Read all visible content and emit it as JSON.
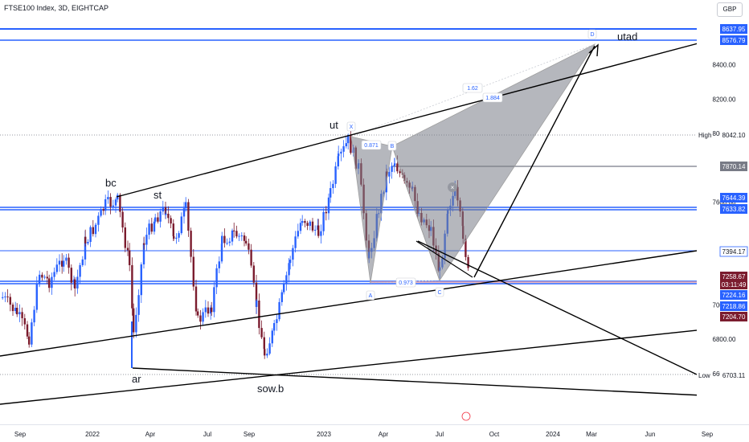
{
  "header": {
    "title": "FTSE100 Index, 3D, EIGHTCAP",
    "currency": "GBP"
  },
  "colors": {
    "up": "#2962ff",
    "down": "#7b1c2e",
    "blue_line": "#2962ff",
    "pattern_fill": "#787b86",
    "trend": "#000000"
  },
  "chart_data": {
    "type": "candlestick",
    "symbol": "FTSE100 Index",
    "timeframe": "3D",
    "y_ticks": [
      6600,
      6800,
      7000,
      7600,
      8000,
      8200,
      8400
    ],
    "x_ticks": [
      "Sep",
      "2022",
      "Apr",
      "Jul",
      "Sep",
      "2023",
      "Apr",
      "Jul",
      "Oct",
      "2024",
      "Mar",
      "Jun",
      "Sep"
    ],
    "price_labels": [
      {
        "text": "8637.95",
        "style": "blue"
      },
      {
        "text": "8576.79",
        "style": "blue"
      },
      {
        "text": "8042.10",
        "tag": "High",
        "style": "plain"
      },
      {
        "text": "7870.14",
        "style": "gray"
      },
      {
        "text": "7644.39",
        "style": "blue"
      },
      {
        "text": "7633.82",
        "style": "blue"
      },
      {
        "text": "7394.17",
        "style": "plainblue"
      },
      {
        "text": "7258.67",
        "style": "red"
      },
      {
        "text": "03:11:49",
        "style": "red"
      },
      {
        "text": "7224.16",
        "style": "blue"
      },
      {
        "text": "7218.86",
        "style": "blue"
      },
      {
        "text": "7204.70",
        "style": "red"
      },
      {
        "text": "6703.11",
        "tag": "Low",
        "style": "plain"
      }
    ],
    "annotations": [
      "bc",
      "st",
      "ut",
      "ar",
      "sow.b",
      "utad"
    ],
    "harmonic_points": [
      "X",
      "A",
      "B",
      "C",
      "D"
    ],
    "ratios": [
      "0.871",
      "1.62",
      "1.884",
      "0.973"
    ]
  }
}
